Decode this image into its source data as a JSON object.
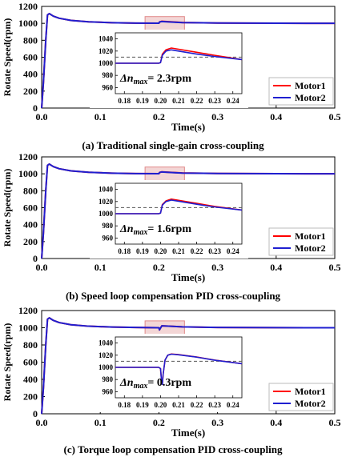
{
  "chart_data": [
    {
      "type": "line",
      "caption": "(a) Traditional single-gain cross-coupling",
      "xlabel": "Time(s)",
      "ylabel": "Rotate Speed(rpm)",
      "xlim": [
        0,
        0.5
      ],
      "ylim": [
        0,
        1200
      ],
      "xticks": [
        0.0,
        0.1,
        0.2,
        0.3,
        0.4,
        0.5
      ],
      "xticklabels": [
        "0.0",
        "0.1",
        "0.2",
        "0.3",
        "0.4",
        "0.5"
      ],
      "yticks": [
        0,
        200,
        400,
        600,
        800,
        1000,
        1200
      ],
      "yticklabels": [
        "0",
        "200",
        "400",
        "600",
        "800",
        "1000",
        "1200"
      ],
      "legend_position": "bottom-right",
      "series": [
        {
          "name": "Motor1",
          "color": "#ff0000",
          "x": [
            0,
            0.003,
            0.007,
            0.01,
            0.013,
            0.02,
            0.03,
            0.05,
            0.08,
            0.12,
            0.16,
            0.2,
            0.201,
            0.205,
            0.22,
            0.24,
            0.3,
            0.4,
            0.5
          ],
          "y": [
            0,
            300,
            800,
            1100,
            1115,
            1085,
            1060,
            1035,
            1018,
            1008,
            1003,
            1001,
            1016,
            1024,
            1018,
            1010,
            1004,
            1001,
            1000
          ]
        },
        {
          "name": "Motor2",
          "color": "#1f1fd0",
          "x": [
            0,
            0.003,
            0.007,
            0.01,
            0.013,
            0.02,
            0.03,
            0.05,
            0.08,
            0.12,
            0.16,
            0.2,
            0.201,
            0.205,
            0.22,
            0.24,
            0.3,
            0.4,
            0.5
          ],
          "y": [
            0,
            300,
            800,
            1100,
            1115,
            1085,
            1060,
            1035,
            1018,
            1008,
            1003,
            1001,
            1016,
            1022,
            1016,
            1009,
            1004,
            1001,
            1000
          ]
        }
      ],
      "inset": {
        "annotation": "Δn_max = 2.3rpm",
        "xlim": [
          0.175,
          0.245
        ],
        "ylim": [
          950,
          1050
        ],
        "xticks": [
          0.18,
          0.19,
          0.2,
          0.21,
          0.22,
          0.23,
          0.24
        ],
        "xticklabels": [
          "0.18",
          "0.19",
          "0.20",
          "0.21",
          "0.22",
          "0.23",
          "0.24"
        ],
        "yticks": [
          960,
          980,
          1000,
          1020,
          1040
        ],
        "yticklabels": [
          "960",
          "980",
          "1000",
          "1020",
          "1040"
        ],
        "reference_line": 1010,
        "series": [
          {
            "name": "Motor1",
            "x": [
              0.175,
              0.199,
              0.2,
              0.201,
              0.203,
              0.206,
              0.21,
              0.22,
              0.23,
              0.245
            ],
            "y": [
              1000,
              1000,
              1001,
              1015,
              1022,
              1025,
              1023,
              1018,
              1013,
              1006
            ]
          },
          {
            "name": "Motor2",
            "x": [
              0.175,
              0.199,
              0.2,
              0.201,
              0.203,
              0.206,
              0.21,
              0.22,
              0.23,
              0.245
            ],
            "y": [
              1000,
              1000,
              1001,
              1013,
              1020,
              1022,
              1020,
              1015,
              1011,
              1006
            ]
          }
        ]
      }
    },
    {
      "type": "line",
      "caption": "(b) Speed loop compensation PID cross-coupling",
      "xlabel": "Time(s)",
      "ylabel": "Rotate Speed(rpm)",
      "xlim": [
        0,
        0.5
      ],
      "ylim": [
        0,
        1200
      ],
      "xticks": [
        0.0,
        0.1,
        0.2,
        0.3,
        0.4,
        0.5
      ],
      "xticklabels": [
        "0.0",
        "0.1",
        "0.2",
        "0.3",
        "0.4",
        "0.5"
      ],
      "yticks": [
        0,
        200,
        400,
        600,
        800,
        1000,
        1200
      ],
      "yticklabels": [
        "0",
        "200",
        "400",
        "600",
        "800",
        "1000",
        "1200"
      ],
      "legend_position": "bottom-right",
      "series": [
        {
          "name": "Motor1",
          "color": "#ff0000",
          "x": [
            0,
            0.003,
            0.007,
            0.01,
            0.013,
            0.02,
            0.03,
            0.05,
            0.08,
            0.12,
            0.16,
            0.2,
            0.201,
            0.205,
            0.22,
            0.24,
            0.3,
            0.4,
            0.5
          ],
          "y": [
            0,
            300,
            800,
            1100,
            1115,
            1085,
            1060,
            1035,
            1018,
            1008,
            1003,
            1001,
            1016,
            1023,
            1017,
            1010,
            1004,
            1001,
            1000
          ]
        },
        {
          "name": "Motor2",
          "color": "#1f1fd0",
          "x": [
            0,
            0.003,
            0.007,
            0.01,
            0.013,
            0.02,
            0.03,
            0.05,
            0.08,
            0.12,
            0.16,
            0.2,
            0.201,
            0.205,
            0.22,
            0.24,
            0.3,
            0.4,
            0.5
          ],
          "y": [
            0,
            300,
            800,
            1100,
            1115,
            1085,
            1060,
            1035,
            1018,
            1008,
            1003,
            1001,
            1015,
            1022,
            1016,
            1009,
            1004,
            1001,
            1000
          ]
        }
      ],
      "inset": {
        "annotation": "Δn_max = 1.6rpm",
        "xlim": [
          0.175,
          0.245
        ],
        "ylim": [
          950,
          1050
        ],
        "xticks": [
          0.18,
          0.19,
          0.2,
          0.21,
          0.22,
          0.23,
          0.24
        ],
        "xticklabels": [
          "0.18",
          "0.19",
          "0.20",
          "0.21",
          "0.22",
          "0.23",
          "0.24"
        ],
        "yticks": [
          960,
          980,
          1000,
          1020,
          1040
        ],
        "yticklabels": [
          "960",
          "980",
          "1000",
          "1020",
          "1040"
        ],
        "reference_line": 1010,
        "series": [
          {
            "name": "Motor1",
            "x": [
              0.175,
              0.199,
              0.2,
              0.201,
              0.203,
              0.206,
              0.21,
              0.22,
              0.23,
              0.245
            ],
            "y": [
              1000,
              1000,
              1001,
              1015,
              1021,
              1024,
              1022,
              1017,
              1012,
              1006
            ]
          },
          {
            "name": "Motor2",
            "x": [
              0.175,
              0.199,
              0.2,
              0.201,
              0.203,
              0.206,
              0.21,
              0.22,
              0.23,
              0.245
            ],
            "y": [
              1000,
              1000,
              1001,
              1014,
              1020,
              1022.4,
              1020.5,
              1015.5,
              1011,
              1006
            ]
          }
        ]
      }
    },
    {
      "type": "line",
      "caption": "(c) Torque loop compensation PID cross-coupling",
      "xlabel": "Time(s)",
      "ylabel": "Rotate Speed(rpm)",
      "xlim": [
        0,
        0.5
      ],
      "ylim": [
        0,
        1200
      ],
      "xticks": [
        0.0,
        0.1,
        0.2,
        0.3,
        0.4,
        0.5
      ],
      "xticklabels": [
        "0.0",
        "0.1",
        "0.2",
        "0.3",
        "0.4",
        "0.5"
      ],
      "yticks": [
        0,
        200,
        400,
        600,
        800,
        1000,
        1200
      ],
      "yticklabels": [
        "0",
        "200",
        "400",
        "600",
        "800",
        "1000",
        "1200"
      ],
      "legend_position": "bottom-right",
      "series": [
        {
          "name": "Motor1",
          "color": "#ff0000",
          "x": [
            0,
            0.003,
            0.007,
            0.01,
            0.013,
            0.02,
            0.03,
            0.05,
            0.08,
            0.12,
            0.16,
            0.2,
            0.201,
            0.203,
            0.205,
            0.22,
            0.24,
            0.3,
            0.4,
            0.5
          ],
          "y": [
            0,
            300,
            800,
            1100,
            1115,
            1085,
            1060,
            1035,
            1018,
            1008,
            1003,
            1000,
            975,
            1000,
            1022,
            1017,
            1010,
            1004,
            1001,
            1000
          ]
        },
        {
          "name": "Motor2",
          "color": "#1f1fd0",
          "x": [
            0,
            0.003,
            0.007,
            0.01,
            0.013,
            0.02,
            0.03,
            0.05,
            0.08,
            0.12,
            0.16,
            0.2,
            0.201,
            0.203,
            0.205,
            0.22,
            0.24,
            0.3,
            0.4,
            0.5
          ],
          "y": [
            0,
            300,
            800,
            1100,
            1115,
            1085,
            1060,
            1035,
            1018,
            1008,
            1003,
            1000,
            975,
            1000,
            1022,
            1017,
            1010,
            1004,
            1001,
            1000
          ]
        }
      ],
      "inset": {
        "annotation": "Δn_max = 0.3rpm",
        "xlim": [
          0.175,
          0.245
        ],
        "ylim": [
          950,
          1050
        ],
        "xticks": [
          0.18,
          0.19,
          0.2,
          0.21,
          0.22,
          0.23,
          0.24
        ],
        "xticklabels": [
          "0.18",
          "0.19",
          "0.20",
          "0.21",
          "0.22",
          "0.23",
          "0.24"
        ],
        "yticks": [
          960,
          980,
          1000,
          1020,
          1040
        ],
        "yticklabels": [
          "960",
          "980",
          "1000",
          "1020",
          "1040"
        ],
        "reference_line": 1010,
        "series": [
          {
            "name": "Motor1",
            "x": [
              0.175,
              0.199,
              0.2,
              0.2005,
              0.201,
              0.2015,
              0.2025,
              0.204,
              0.206,
              0.21,
              0.22,
              0.23,
              0.245
            ],
            "y": [
              1000,
              1000,
              998,
              980,
              972,
              990,
              1012,
              1020,
              1022,
              1021,
              1017,
              1012,
              1006
            ]
          },
          {
            "name": "Motor2",
            "x": [
              0.175,
              0.199,
              0.2,
              0.2005,
              0.201,
              0.2015,
              0.2025,
              0.204,
              0.206,
              0.21,
              0.22,
              0.23,
              0.245
            ],
            "y": [
              1000,
              1000,
              998,
              980,
              972,
              990,
              1012,
              1020,
              1021.7,
              1020.7,
              1016.8,
              1011.8,
              1006
            ]
          }
        ]
      }
    }
  ]
}
